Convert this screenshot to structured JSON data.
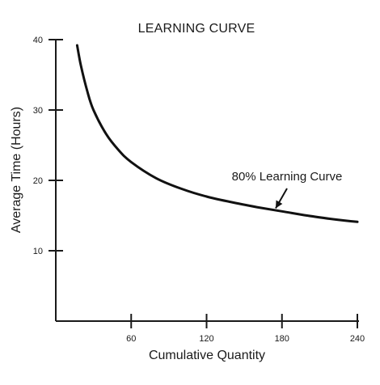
{
  "chart_data": {
    "type": "line",
    "title": "LEARNING CURVE",
    "xlabel": "Cumulative Quantity",
    "ylabel": "Average Time (Hours)",
    "xlim": [
      0,
      240
    ],
    "ylim": [
      0,
      40
    ],
    "x_ticks": [
      60,
      120,
      180,
      240
    ],
    "y_ticks": [
      10,
      20,
      30,
      40
    ],
    "grid": false,
    "series": [
      {
        "name": "80% Learning Curve",
        "x": [
          17,
          20,
          25,
          30,
          40,
          50,
          60,
          80,
          100,
          120,
          140,
          160,
          180,
          200,
          220,
          240
        ],
        "y": [
          39.2,
          36.3,
          32.7,
          30.0,
          26.6,
          24.3,
          22.6,
          20.3,
          18.8,
          17.7,
          16.9,
          16.2,
          15.6,
          15.0,
          14.5,
          14.1
        ]
      }
    ],
    "annotations": [
      {
        "text": "80% Learning Curve",
        "target_x": 175,
        "target_y": 15.8,
        "arrow": true
      }
    ]
  }
}
